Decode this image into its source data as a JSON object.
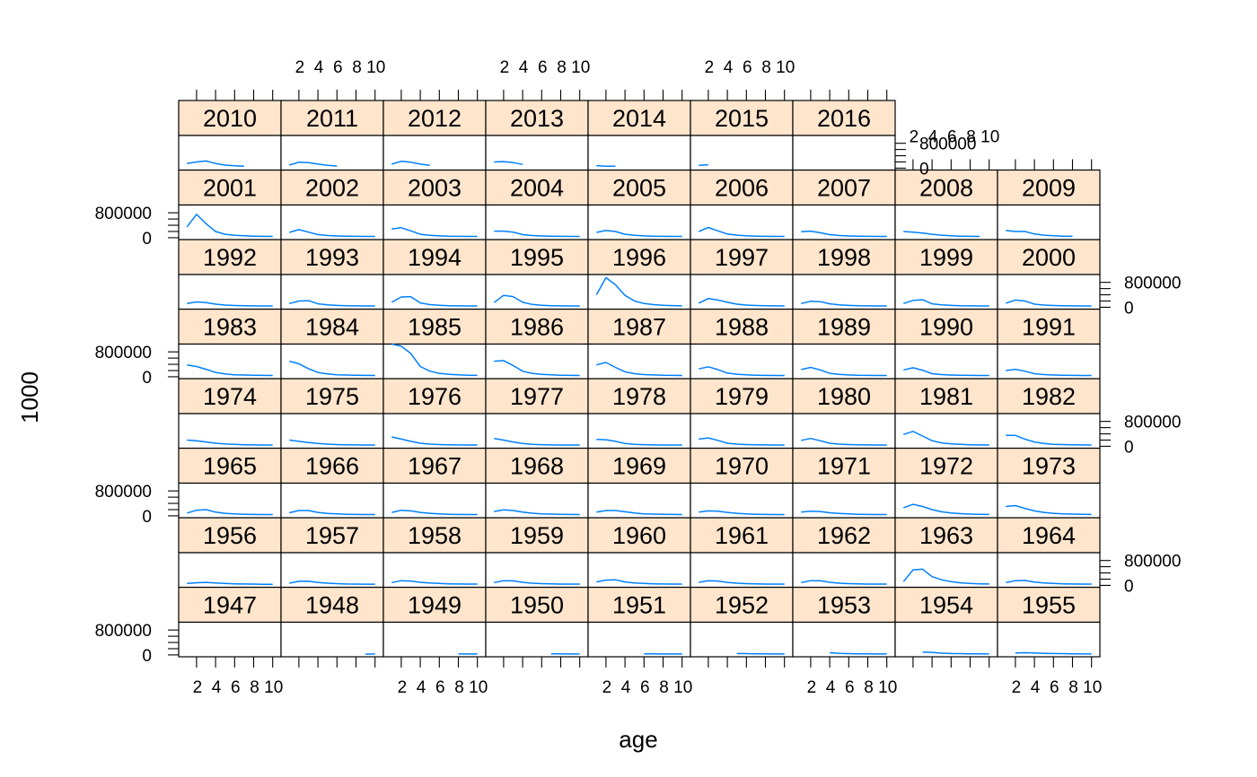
{
  "chart_data": {
    "type": "line",
    "layout": {
      "columns": 9,
      "rows": 8,
      "order": "bottom-to-top, left-to-right"
    },
    "xlabel": "age",
    "ylabel": "1000",
    "x": [
      1,
      2,
      3,
      4,
      5,
      6,
      7,
      8,
      9,
      10
    ],
    "x_ticks": [
      "2",
      "4",
      "6",
      "8",
      "10"
    ],
    "xlim": [
      0.5,
      10.5
    ],
    "y_ticks": [
      0,
      800000
    ],
    "y_tick_labels": [
      "0",
      "800000"
    ],
    "ylim": [
      -60000,
      1050000
    ],
    "line_color": "#0080ff",
    "strip_color": "#ffe5cc",
    "panels": [
      {
        "year": "1947",
        "values": []
      },
      {
        "year": "1948",
        "values": [
          null,
          null,
          null,
          null,
          null,
          null,
          null,
          null,
          25000,
          30000
        ]
      },
      {
        "year": "1949",
        "values": [
          null,
          null,
          null,
          null,
          null,
          null,
          null,
          28000,
          30000,
          30000
        ]
      },
      {
        "year": "1950",
        "values": [
          null,
          null,
          null,
          null,
          null,
          null,
          32000,
          31000,
          30000,
          30000
        ]
      },
      {
        "year": "1951",
        "values": [
          null,
          null,
          null,
          null,
          null,
          32000,
          31000,
          30000,
          30000,
          30000
        ]
      },
      {
        "year": "1952",
        "values": [
          null,
          null,
          null,
          null,
          45000,
          40000,
          35000,
          32000,
          30000,
          30000
        ]
      },
      {
        "year": "1953",
        "values": [
          null,
          null,
          null,
          70000,
          50000,
          40000,
          35000,
          32000,
          30000,
          30000
        ]
      },
      {
        "year": "1954",
        "values": [
          null,
          null,
          90000,
          80000,
          55000,
          45000,
          40000,
          35000,
          32000,
          30000
        ]
      },
      {
        "year": "1955",
        "values": [
          null,
          60000,
          70000,
          60000,
          50000,
          45000,
          40000,
          35000,
          32000,
          30000
        ]
      },
      {
        "year": "1956",
        "values": [
          60000,
          85000,
          95000,
          75000,
          60000,
          50000,
          45000,
          40000,
          35000,
          35000
        ]
      },
      {
        "year": "1957",
        "values": [
          70000,
          130000,
          135000,
          95000,
          70000,
          55000,
          45000,
          40000,
          38000,
          38000
        ]
      },
      {
        "year": "1958",
        "values": [
          90000,
          150000,
          140000,
          100000,
          75000,
          60000,
          50000,
          45000,
          40000,
          40000
        ]
      },
      {
        "year": "1959",
        "values": [
          90000,
          150000,
          145000,
          100000,
          70000,
          55000,
          48000,
          42000,
          40000,
          40000
        ]
      },
      {
        "year": "1960",
        "values": [
          110000,
          170000,
          180000,
          110000,
          75000,
          60000,
          50000,
          45000,
          42000,
          40000
        ]
      },
      {
        "year": "1961",
        "values": [
          100000,
          150000,
          140000,
          95000,
          70000,
          55000,
          48000,
          42000,
          40000,
          40000
        ]
      },
      {
        "year": "1962",
        "values": [
          90000,
          150000,
          150000,
          100000,
          70000,
          55000,
          48000,
          42000,
          40000,
          40000
        ]
      },
      {
        "year": "1963",
        "values": [
          120000,
          500000,
          520000,
          280000,
          180000,
          120000,
          80000,
          60000,
          50000,
          45000
        ]
      },
      {
        "year": "1964",
        "values": [
          90000,
          150000,
          160000,
          105000,
          75000,
          60000,
          50000,
          45000,
          42000,
          40000
        ]
      },
      {
        "year": "1965",
        "values": [
          90000,
          180000,
          200000,
          120000,
          80000,
          60000,
          50000,
          45000,
          42000,
          40000
        ]
      },
      {
        "year": "1966",
        "values": [
          100000,
          170000,
          170000,
          110000,
          75000,
          60000,
          50000,
          45000,
          42000,
          40000
        ]
      },
      {
        "year": "1967",
        "values": [
          110000,
          180000,
          160000,
          110000,
          80000,
          60000,
          50000,
          45000,
          42000,
          40000
        ]
      },
      {
        "year": "1968",
        "values": [
          140000,
          190000,
          170000,
          120000,
          85000,
          65000,
          55000,
          48000,
          43000,
          40000
        ]
      },
      {
        "year": "1969",
        "values": [
          120000,
          170000,
          170000,
          130000,
          90000,
          65000,
          55000,
          48000,
          43000,
          40000
        ]
      },
      {
        "year": "1970",
        "values": [
          120000,
          160000,
          150000,
          110000,
          80000,
          60000,
          50000,
          45000,
          42000,
          40000
        ]
      },
      {
        "year": "1971",
        "values": [
          120000,
          150000,
          140000,
          100000,
          75000,
          60000,
          50000,
          45000,
          42000,
          40000
        ]
      },
      {
        "year": "1972",
        "values": [
          260000,
          370000,
          300000,
          200000,
          130000,
          90000,
          70000,
          55000,
          48000,
          45000
        ]
      },
      {
        "year": "1973",
        "values": [
          300000,
          330000,
          240000,
          160000,
          110000,
          80000,
          65000,
          55000,
          48000,
          45000
        ]
      },
      {
        "year": "1974",
        "values": [
          200000,
          180000,
          140000,
          100000,
          75000,
          60000,
          50000,
          45000,
          42000,
          40000
        ]
      },
      {
        "year": "1975",
        "values": [
          200000,
          160000,
          120000,
          90000,
          70000,
          55000,
          48000,
          43000,
          40000,
          40000
        ]
      },
      {
        "year": "1976",
        "values": [
          300000,
          230000,
          160000,
          100000,
          70000,
          55000,
          48000,
          43000,
          40000,
          40000
        ]
      },
      {
        "year": "1977",
        "values": [
          250000,
          200000,
          140000,
          90000,
          65000,
          52000,
          45000,
          42000,
          40000,
          40000
        ]
      },
      {
        "year": "1978",
        "values": [
          220000,
          210000,
          160000,
          90000,
          65000,
          52000,
          45000,
          42000,
          40000,
          40000
        ]
      },
      {
        "year": "1979",
        "values": [
          230000,
          270000,
          190000,
          100000,
          70000,
          55000,
          48000,
          43000,
          40000,
          40000
        ]
      },
      {
        "year": "1980",
        "values": [
          190000,
          250000,
          180000,
          100000,
          70000,
          55000,
          48000,
          43000,
          40000,
          40000
        ]
      },
      {
        "year": "1981",
        "values": [
          380000,
          480000,
          330000,
          180000,
          110000,
          75000,
          60000,
          50000,
          45000,
          42000
        ]
      },
      {
        "year": "1982",
        "values": [
          350000,
          350000,
          230000,
          140000,
          90000,
          65000,
          55000,
          48000,
          43000,
          40000
        ]
      },
      {
        "year": "1983",
        "values": [
          380000,
          330000,
          240000,
          140000,
          90000,
          65000,
          55000,
          48000,
          43000,
          40000
        ]
      },
      {
        "year": "1984",
        "values": [
          500000,
          420000,
          260000,
          140000,
          90000,
          65000,
          55000,
          48000,
          43000,
          40000
        ]
      },
      {
        "year": "1985",
        "values": [
          1050000,
          980000,
          750000,
          330000,
          180000,
          110000,
          80000,
          60000,
          50000,
          45000
        ]
      },
      {
        "year": "1986",
        "values": [
          500000,
          520000,
          360000,
          180000,
          110000,
          75000,
          60000,
          50000,
          45000,
          42000
        ]
      },
      {
        "year": "1987",
        "values": [
          380000,
          460000,
          300000,
          160000,
          100000,
          70000,
          58000,
          48000,
          43000,
          40000
        ]
      },
      {
        "year": "1988",
        "values": [
          250000,
          320000,
          230000,
          120000,
          80000,
          60000,
          50000,
          45000,
          42000,
          40000
        ]
      },
      {
        "year": "1989",
        "values": [
          230000,
          300000,
          220000,
          110000,
          75000,
          58000,
          48000,
          43000,
          40000,
          40000
        ]
      },
      {
        "year": "1990",
        "values": [
          220000,
          290000,
          210000,
          100000,
          70000,
          55000,
          48000,
          43000,
          40000,
          40000
        ]
      },
      {
        "year": "1991",
        "values": [
          200000,
          240000,
          180000,
          100000,
          70000,
          55000,
          48000,
          43000,
          40000,
          40000
        ]
      },
      {
        "year": "1992",
        "values": [
          120000,
          170000,
          150000,
          100000,
          70000,
          55000,
          48000,
          43000,
          40000,
          40000
        ]
      },
      {
        "year": "1993",
        "values": [
          120000,
          200000,
          210000,
          110000,
          75000,
          58000,
          48000,
          43000,
          40000,
          40000
        ]
      },
      {
        "year": "1994",
        "values": [
          160000,
          330000,
          340000,
          140000,
          85000,
          60000,
          50000,
          45000,
          42000,
          40000
        ]
      },
      {
        "year": "1995",
        "values": [
          150000,
          380000,
          340000,
          160000,
          90000,
          62000,
          50000,
          45000,
          42000,
          40000
        ]
      },
      {
        "year": "1996",
        "values": [
          400000,
          950000,
          720000,
          380000,
          200000,
          120000,
          85000,
          65000,
          52000,
          45000
        ]
      },
      {
        "year": "1997",
        "values": [
          130000,
          280000,
          230000,
          160000,
          100000,
          70000,
          55000,
          48000,
          43000,
          40000
        ]
      },
      {
        "year": "1998",
        "values": [
          120000,
          190000,
          180000,
          110000,
          75000,
          58000,
          48000,
          43000,
          40000,
          40000
        ]
      },
      {
        "year": "1999",
        "values": [
          120000,
          220000,
          240000,
          110000,
          75000,
          58000,
          48000,
          43000,
          40000,
          40000
        ]
      },
      {
        "year": "2000",
        "values": [
          130000,
          230000,
          200000,
          100000,
          70000,
          55000,
          48000,
          43000,
          40000,
          40000
        ]
      },
      {
        "year": "2001",
        "values": [
          350000,
          750000,
          450000,
          200000,
          110000,
          75000,
          60000,
          50000,
          45000,
          42000
        ]
      },
      {
        "year": "2002",
        "values": [
          170000,
          260000,
          180000,
          100000,
          70000,
          55000,
          48000,
          43000,
          40000,
          40000
        ]
      },
      {
        "year": "2003",
        "values": [
          280000,
          320000,
          220000,
          110000,
          75000,
          58000,
          48000,
          43000,
          40000,
          40000
        ]
      },
      {
        "year": "2004",
        "values": [
          210000,
          210000,
          180000,
          100000,
          70000,
          55000,
          48000,
          43000,
          40000,
          40000
        ]
      },
      {
        "year": "2005",
        "values": [
          170000,
          230000,
          200000,
          110000,
          75000,
          58000,
          48000,
          43000,
          40000,
          40000
        ]
      },
      {
        "year": "2006",
        "values": [
          200000,
          330000,
          220000,
          120000,
          80000,
          60000,
          50000,
          45000,
          42000,
          40000
        ]
      },
      {
        "year": "2007",
        "values": [
          190000,
          210000,
          160000,
          100000,
          70000,
          55000,
          48000,
          43000,
          40000,
          40000
        ]
      },
      {
        "year": "2008",
        "values": [
          200000,
          180000,
          150000,
          110000,
          80000,
          60000,
          50000,
          45000,
          42000,
          null
        ]
      },
      {
        "year": "2009",
        "values": [
          230000,
          200000,
          200000,
          120000,
          80000,
          60000,
          50000,
          45000,
          null,
          null
        ]
      },
      {
        "year": "2010",
        "values": [
          150000,
          200000,
          230000,
          150000,
          100000,
          75000,
          60000,
          null,
          null,
          null
        ]
      },
      {
        "year": "2011",
        "values": [
          100000,
          190000,
          180000,
          130000,
          90000,
          70000,
          null,
          null,
          null,
          null
        ]
      },
      {
        "year": "2012",
        "values": [
          130000,
          220000,
          190000,
          130000,
          90000,
          null,
          null,
          null,
          null,
          null
        ]
      },
      {
        "year": "2013",
        "values": [
          200000,
          210000,
          180000,
          120000,
          null,
          null,
          null,
          null,
          null,
          null
        ]
      },
      {
        "year": "2014",
        "values": [
          80000,
          60000,
          60000,
          null,
          null,
          null,
          null,
          null,
          null,
          null
        ]
      },
      {
        "year": "2015",
        "values": [
          90000,
          110000,
          null,
          null,
          null,
          null,
          null,
          null,
          null,
          null
        ]
      },
      {
        "year": "2016",
        "values": []
      }
    ]
  }
}
